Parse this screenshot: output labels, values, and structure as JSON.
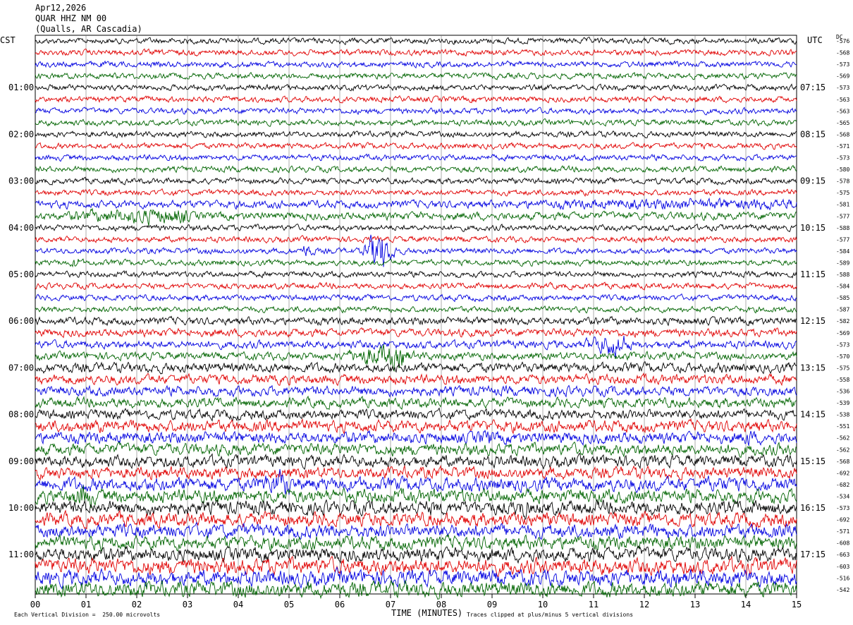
{
  "header": {
    "date": "Apr12,2026",
    "station": "QUAR HHZ NM 00",
    "location": "(Qualls, AR Cascadia)"
  },
  "left_zone_label": "CST",
  "right_zone_label": "UTC",
  "dc_label": "DC",
  "chart_data": {
    "type": "line",
    "title": "",
    "xlabel": "TIME (MINUTES)",
    "xlim": [
      0,
      15
    ],
    "x_ticks": [
      "00",
      "01",
      "02",
      "03",
      "04",
      "05",
      "06",
      "07",
      "08",
      "09",
      "10",
      "11",
      "12",
      "13",
      "14",
      "15"
    ],
    "rows_per_hour": 4,
    "minutes_per_row": 15,
    "row_colors": [
      "#000000",
      "#e00000",
      "#0000e0",
      "#006400"
    ],
    "cst_hour_labels": [
      "01:00",
      "02:00",
      "03:00",
      "04:00",
      "05:00",
      "06:00",
      "07:00",
      "08:00",
      "09:00",
      "10:00",
      "11:00"
    ],
    "utc_hour_labels": [
      "07:15",
      "08:15",
      "09:15",
      "10:15",
      "11:15",
      "12:15",
      "13:15",
      "14:15",
      "15:15",
      "16:15",
      "17:15"
    ],
    "dc_offsets": [
      "-576",
      "-568",
      "-573",
      "-569",
      "-573",
      "-563",
      "-563",
      "-565",
      "-568",
      "-571",
      "-573",
      "-580",
      "-578",
      "-575",
      "-581",
      "-577",
      "-588",
      "-577",
      "-584",
      "-589",
      "-588",
      "-584",
      "-585",
      "-587",
      "-582",
      "-569",
      "-573",
      "-570",
      "-575",
      "-558",
      "-536",
      "-539",
      "-538",
      "-551",
      "-562",
      "-562",
      "-568",
      "-692",
      "-682",
      "-534",
      "-573",
      "-692",
      "-571",
      "-608",
      "-663",
      "-603",
      "-516",
      "-542"
    ],
    "noise_levels": [
      3,
      3,
      3,
      3,
      3,
      3,
      3,
      3,
      3,
      3,
      3,
      3,
      3,
      3,
      4,
      4,
      3,
      3,
      3,
      3,
      3,
      3,
      3,
      3,
      4,
      4,
      4,
      4,
      5,
      5,
      5,
      5,
      5,
      6,
      6,
      6,
      6,
      6,
      7,
      7,
      7,
      7,
      7,
      7,
      7,
      8,
      8,
      8
    ],
    "events": [
      {
        "row": 14,
        "minute_start": 6.2,
        "minute_end": 15.0,
        "amplitude": 6
      },
      {
        "row": 15,
        "minute_start": 0.0,
        "minute_end": 3.0,
        "amplitude": 9
      },
      {
        "row": 18,
        "minute_start": 5.2,
        "minute_end": 5.4,
        "amplitude": 9
      },
      {
        "row": 18,
        "minute_start": 6.45,
        "minute_end": 6.9,
        "amplitude": 22
      },
      {
        "row": 19,
        "minute_start": 0.65,
        "minute_end": 0.85,
        "amplitude": 7
      },
      {
        "row": 26,
        "minute_start": 10.7,
        "minute_end": 11.6,
        "amplitude": 13
      },
      {
        "row": 27,
        "minute_start": 5.9,
        "minute_end": 7.3,
        "amplitude": 13
      },
      {
        "row": 34,
        "minute_start": 8.5,
        "minute_end": 9.0,
        "amplitude": 9
      },
      {
        "row": 34,
        "minute_start": 13.8,
        "minute_end": 14.1,
        "amplitude": 10
      },
      {
        "row": 38,
        "minute_start": 4.2,
        "minute_end": 5.0,
        "amplitude": 14
      },
      {
        "row": 38,
        "minute_start": 12.8,
        "minute_end": 13.6,
        "amplitude": 9
      },
      {
        "row": 39,
        "minute_start": 0.6,
        "minute_end": 1.1,
        "amplitude": 14
      },
      {
        "row": 40,
        "minute_start": 7.6,
        "minute_end": 7.9,
        "amplitude": 9
      },
      {
        "row": 40,
        "minute_start": 9.3,
        "minute_end": 9.7,
        "amplitude": 12
      }
    ]
  },
  "footer": {
    "scale_note": "Each Vertical Division =  250.00 microvolts",
    "clip_note": "Traces clipped at plus/minus 5 vertical divisions"
  }
}
